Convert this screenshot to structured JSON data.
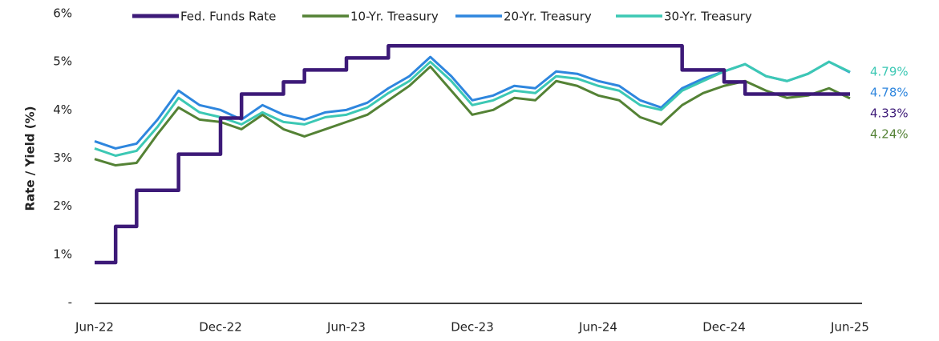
{
  "chart_data": {
    "type": "line",
    "ylabel": "Rate / Yield (%)",
    "categories": [
      "Jun-22",
      null,
      null,
      null,
      null,
      null,
      "Dec-22",
      null,
      null,
      null,
      null,
      null,
      "Jun-23",
      null,
      null,
      null,
      null,
      null,
      "Dec-23",
      null,
      null,
      null,
      null,
      null,
      "Jun-24",
      null,
      null,
      null,
      null,
      null,
      "Dec-24",
      null,
      null,
      null,
      null,
      null,
      "Jun-25"
    ],
    "ylim": [
      0,
      6
    ],
    "yticks": [
      {
        "value": 0,
        "label": "-"
      },
      {
        "value": 1,
        "label": "1%"
      },
      {
        "value": 2,
        "label": "2%"
      },
      {
        "value": 3,
        "label": "3%"
      },
      {
        "value": 4,
        "label": "4%"
      },
      {
        "value": 5,
        "label": "5%"
      },
      {
        "value": 6,
        "label": "6%"
      }
    ],
    "grid": false,
    "legend": "top",
    "series": [
      {
        "name": "10-Yr. Treasury",
        "color": "#548235",
        "values": [
          2.98,
          2.85,
          2.9,
          3.5,
          4.05,
          3.8,
          3.75,
          3.6,
          3.9,
          3.6,
          3.45,
          3.6,
          3.75,
          3.9,
          4.2,
          4.5,
          4.9,
          4.4,
          3.9,
          4.0,
          4.25,
          4.2,
          4.6,
          4.5,
          4.3,
          4.2,
          3.85,
          3.7,
          4.1,
          4.35,
          4.5,
          4.6,
          4.4,
          4.25,
          4.3,
          4.45,
          4.24
        ],
        "value_labels": [
          null,
          null,
          null,
          null,
          null,
          null,
          null,
          null,
          null,
          null,
          null,
          null,
          null,
          null,
          null,
          null,
          null,
          null,
          null,
          null,
          null,
          null,
          null,
          null,
          null,
          null,
          null,
          null,
          null,
          null,
          null,
          null,
          null,
          null,
          null,
          null,
          "4.24%"
        ]
      },
      {
        "name": "20-Yr. Treasury",
        "color": "#2e86de",
        "values": [
          3.35,
          3.2,
          3.3,
          3.8,
          4.4,
          4.1,
          4.0,
          3.8,
          4.1,
          3.9,
          3.8,
          3.95,
          4.0,
          4.15,
          4.45,
          4.7,
          5.1,
          4.7,
          4.2,
          4.3,
          4.5,
          4.45,
          4.8,
          4.75,
          4.6,
          4.5,
          4.2,
          4.05,
          4.45,
          4.65,
          4.8,
          4.95,
          4.7,
          4.6,
          4.75,
          5.0,
          4.78
        ],
        "value_labels": [
          null,
          null,
          null,
          null,
          null,
          null,
          null,
          null,
          null,
          null,
          null,
          null,
          null,
          null,
          null,
          null,
          null,
          null,
          null,
          null,
          null,
          null,
          null,
          null,
          null,
          null,
          null,
          null,
          null,
          null,
          null,
          null,
          null,
          null,
          null,
          null,
          "4.78%"
        ]
      },
      {
        "name": "30-Yr. Treasury",
        "color": "#3cc8b4",
        "values": [
          3.2,
          3.05,
          3.15,
          3.65,
          4.25,
          3.95,
          3.85,
          3.7,
          3.95,
          3.75,
          3.7,
          3.85,
          3.9,
          4.05,
          4.35,
          4.6,
          5.0,
          4.6,
          4.1,
          4.2,
          4.4,
          4.35,
          4.7,
          4.65,
          4.5,
          4.4,
          4.1,
          4.0,
          4.4,
          4.6,
          4.8,
          4.95,
          4.7,
          4.6,
          4.75,
          5.0,
          4.79
        ],
        "value_labels": [
          null,
          null,
          null,
          null,
          null,
          null,
          null,
          null,
          null,
          null,
          null,
          null,
          null,
          null,
          null,
          null,
          null,
          null,
          null,
          null,
          null,
          null,
          null,
          null,
          null,
          null,
          null,
          null,
          null,
          null,
          null,
          null,
          null,
          null,
          null,
          null,
          "4.79%"
        ]
      },
      {
        "name": "Fed. Funds Rate",
        "color": "#3d1a78",
        "step": true,
        "values": [
          0.83,
          1.58,
          2.33,
          2.33,
          3.08,
          3.08,
          3.83,
          4.33,
          4.33,
          4.58,
          4.83,
          4.83,
          5.08,
          5.08,
          5.33,
          5.33,
          5.33,
          5.33,
          5.33,
          5.33,
          5.33,
          5.33,
          5.33,
          5.33,
          5.33,
          5.33,
          5.33,
          5.33,
          4.83,
          4.83,
          4.58,
          4.33,
          4.33,
          4.33,
          4.33,
          4.33,
          4.33
        ],
        "value_labels": [
          null,
          null,
          null,
          null,
          null,
          null,
          null,
          null,
          null,
          null,
          null,
          null,
          null,
          null,
          null,
          null,
          null,
          null,
          null,
          null,
          null,
          null,
          null,
          null,
          null,
          null,
          null,
          null,
          null,
          null,
          null,
          null,
          null,
          null,
          null,
          null,
          "4.33%"
        ]
      }
    ]
  }
}
